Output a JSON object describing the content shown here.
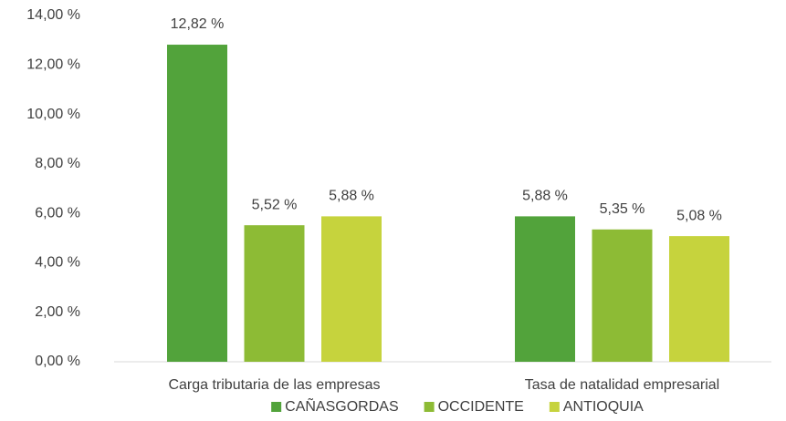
{
  "chart_data": {
    "type": "bar",
    "categories": [
      "Carga tributaria de las empresas",
      "Tasa de natalidad empresarial"
    ],
    "series": [
      {
        "name": "CAÑASGORDAS",
        "color": "#52a33b",
        "values": [
          12.82,
          5.88
        ],
        "value_labels": [
          "12,82 %",
          "5,88 %"
        ]
      },
      {
        "name": "OCCIDENTE",
        "color": "#8dbb35",
        "values": [
          5.52,
          5.35
        ],
        "value_labels": [
          "5,52 %",
          "5,35 %"
        ]
      },
      {
        "name": "ANTIOQUIA",
        "color": "#c6d33d",
        "values": [
          5.88,
          5.08
        ],
        "value_labels": [
          "5,88 %",
          "5,08 %"
        ]
      }
    ],
    "ylim": [
      0,
      14
    ],
    "yticks": [
      {
        "value": 0,
        "label": "0,00 %"
      },
      {
        "value": 2,
        "label": "2,00 %"
      },
      {
        "value": 4,
        "label": "4,00 %"
      },
      {
        "value": 6,
        "label": "6,00 %"
      },
      {
        "value": 8,
        "label": "8,00 %"
      },
      {
        "value": 10,
        "label": "10,00 %"
      },
      {
        "value": 12,
        "label": "12,00 %"
      },
      {
        "value": 14,
        "label": "14,00 %"
      }
    ],
    "grid": false,
    "legend": "bottom"
  }
}
